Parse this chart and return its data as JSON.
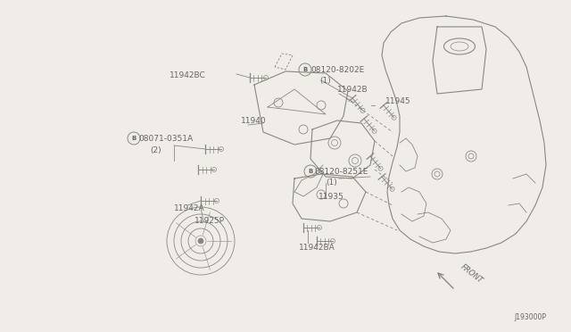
{
  "bg_color": "#f0ede8",
  "line_color": "#888880",
  "text_color": "#666660",
  "fig_width": 6.4,
  "fig_height": 3.72,
  "dpi": 100,
  "xlim": [
    0,
    640
  ],
  "ylim": [
    0,
    372
  ]
}
